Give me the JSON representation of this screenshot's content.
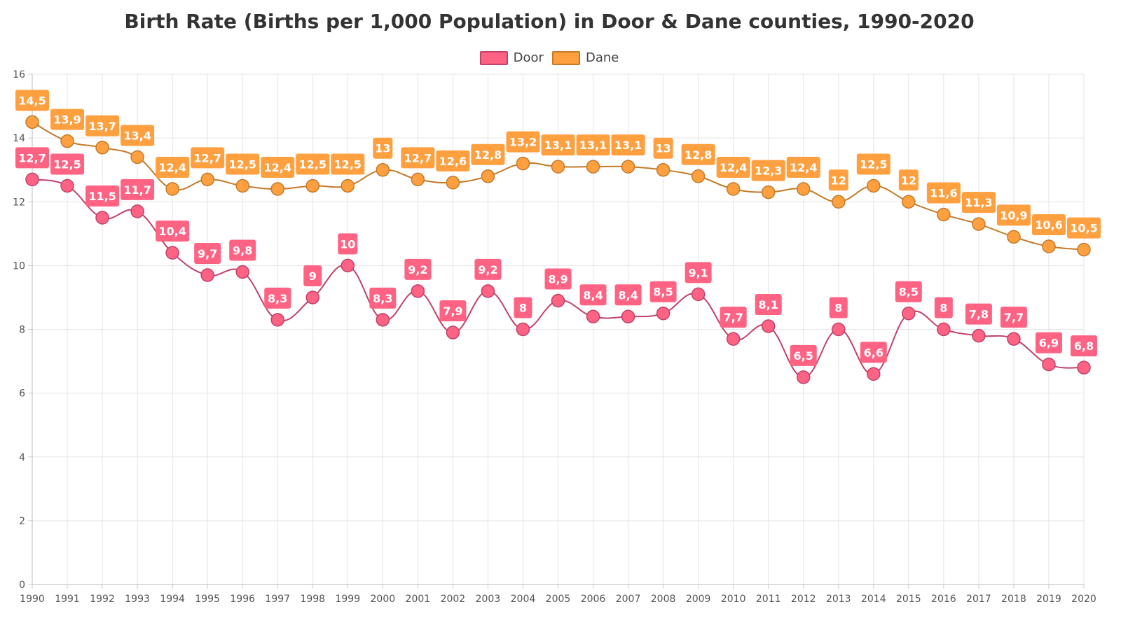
{
  "chart_data": {
    "type": "line",
    "title": "Birth Rate (Births per 1,000 Population) in Door & Dane counties, 1990-2020",
    "xlabel": "",
    "ylabel": "",
    "categories": [
      "1990",
      "1991",
      "1992",
      "1993",
      "1994",
      "1995",
      "1996",
      "1997",
      "1998",
      "1999",
      "2000",
      "2001",
      "2002",
      "2003",
      "2004",
      "2005",
      "2006",
      "2007",
      "2008",
      "2009",
      "2010",
      "2011",
      "2012",
      "2013",
      "2014",
      "2015",
      "2016",
      "2017",
      "2018",
      "2019",
      "2020"
    ],
    "series": [
      {
        "name": "Door",
        "color": "#ff6384",
        "line_color": "#c0416a",
        "values": [
          12.7,
          12.5,
          11.5,
          11.7,
          10.4,
          9.7,
          9.8,
          8.3,
          9,
          10,
          8.3,
          9.2,
          7.9,
          9.2,
          8,
          8.9,
          8.4,
          8.4,
          8.5,
          9.1,
          7.7,
          8.1,
          6.5,
          8,
          6.6,
          8.5,
          8,
          7.8,
          7.7,
          6.9,
          6.8
        ]
      },
      {
        "name": "Dane",
        "color": "#ffa040",
        "line_color": "#c47a28",
        "values": [
          14.5,
          13.9,
          13.7,
          13.4,
          12.4,
          12.7,
          12.5,
          12.4,
          12.5,
          12.5,
          13,
          12.7,
          12.6,
          12.8,
          13.2,
          13.1,
          13.1,
          13.1,
          13,
          12.8,
          12.4,
          12.3,
          12.4,
          12,
          12.5,
          12,
          11.6,
          11.3,
          10.9,
          10.6,
          10.5
        ]
      }
    ],
    "ylim": [
      0,
      16
    ],
    "yticks": [
      0,
      2,
      4,
      6,
      8,
      10,
      12,
      14,
      16
    ],
    "grid": true,
    "legend_position": "top-center",
    "decimal_separator": ","
  }
}
